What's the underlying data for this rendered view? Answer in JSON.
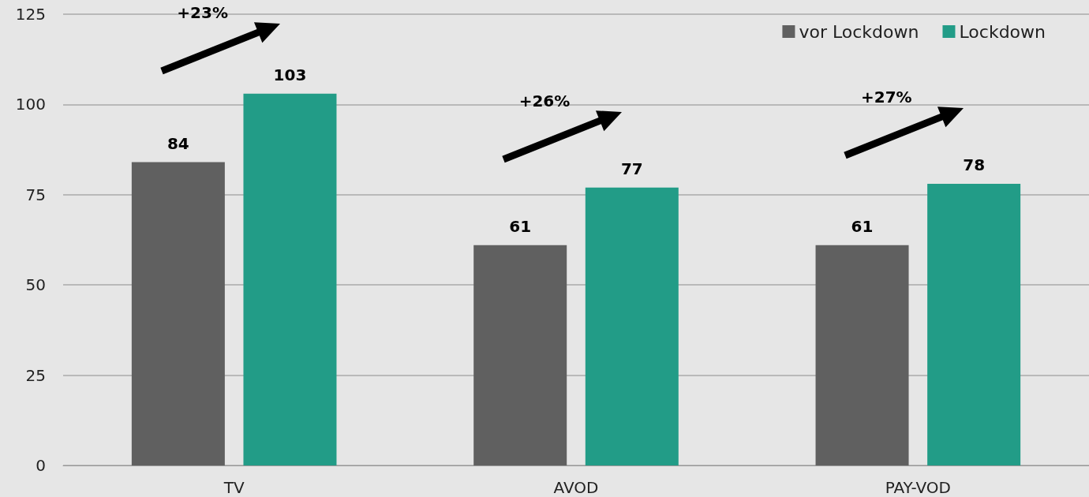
{
  "chart_data": {
    "type": "bar",
    "categories": [
      "TV",
      "AVOD",
      "PAY-VOD"
    ],
    "series": [
      {
        "name": "vor Lockdown",
        "color": "#606060",
        "values": [
          84,
          61,
          61
        ]
      },
      {
        "name": "Lockdown",
        "color": "#229c87",
        "values": [
          103,
          77,
          78
        ]
      }
    ],
    "ylim": [
      0,
      125
    ],
    "yticks": [
      0,
      25,
      50,
      75,
      100,
      125
    ],
    "grid": "y",
    "legend": "top right",
    "data_labels": true,
    "annotations": [
      "+23%",
      "+26%",
      "+27%"
    ]
  }
}
